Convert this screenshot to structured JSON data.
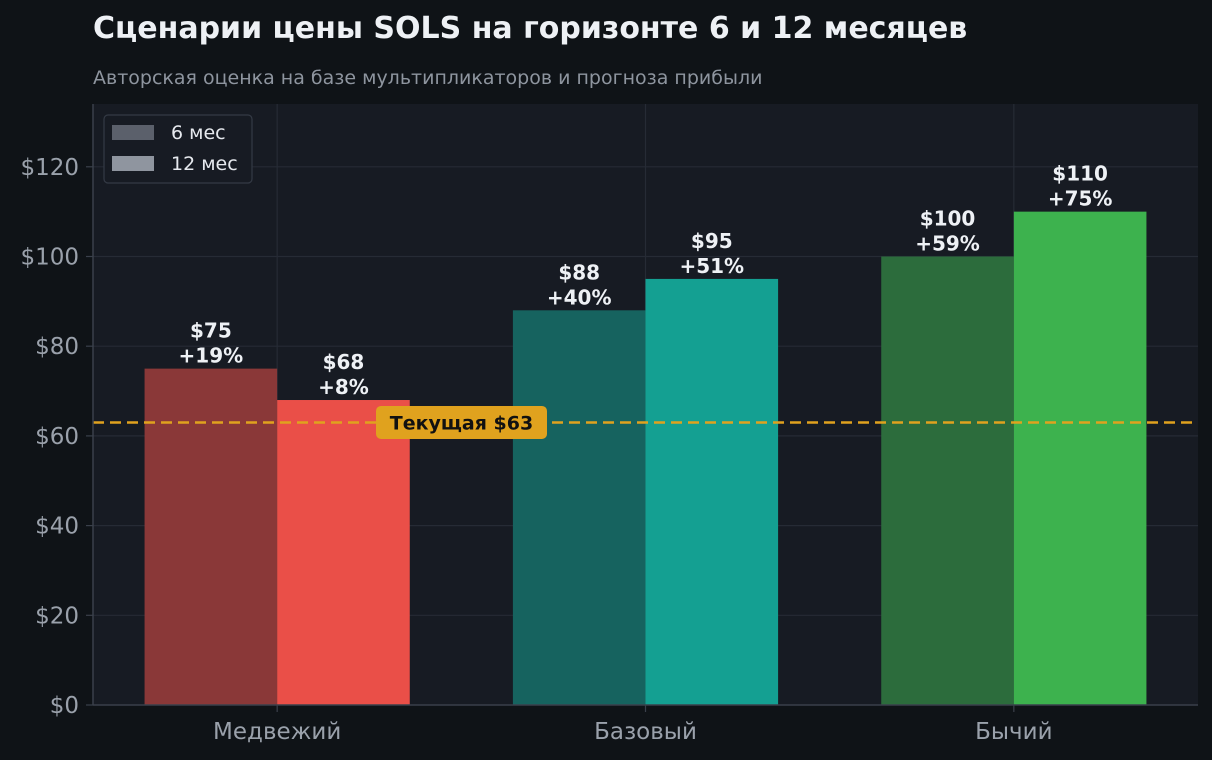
{
  "chart_data": {
    "type": "bar",
    "title": "Сценарии цены SOLS на горизонте 6 и 12 месяцев",
    "subtitle": "Авторская оценка на базе мультипликаторов и прогноза прибыли",
    "categories": [
      "Медвежий",
      "Базовый",
      "Бычий"
    ],
    "series": [
      {
        "name": "6 мес",
        "values": [
          75,
          88,
          100
        ],
        "labels": [
          [
            "$75",
            "+19%"
          ],
          [
            "$88",
            "+40%"
          ],
          [
            "$100",
            "+59%"
          ]
        ],
        "colors": [
          "#8a3838",
          "#16635f",
          "#2c6c3c"
        ],
        "legend_color": "#5b606b"
      },
      {
        "name": "12 мес",
        "values": [
          68,
          95,
          110
        ],
        "labels": [
          [
            "$68",
            "+8%"
          ],
          [
            "$95",
            "+51%"
          ],
          [
            "$110",
            "+75%"
          ]
        ],
        "colors": [
          "#ea4f48",
          "#14a092",
          "#3db24e"
        ],
        "legend_color": "#8f959f"
      }
    ],
    "ylim": [
      0,
      134
    ],
    "yticks": [
      0,
      20,
      40,
      60,
      80,
      100,
      120
    ],
    "ytick_labels": [
      "$0",
      "$20",
      "$40",
      "$60",
      "$80",
      "$100",
      "$120"
    ],
    "reference_line": {
      "value": 63,
      "label": "Текущая $63",
      "color": "#e0a21e"
    },
    "legend_position": "top-left",
    "grid": true,
    "colors": {
      "background": "#0f1317",
      "plot_background": "#171b23",
      "grid": "#262b35"
    }
  }
}
